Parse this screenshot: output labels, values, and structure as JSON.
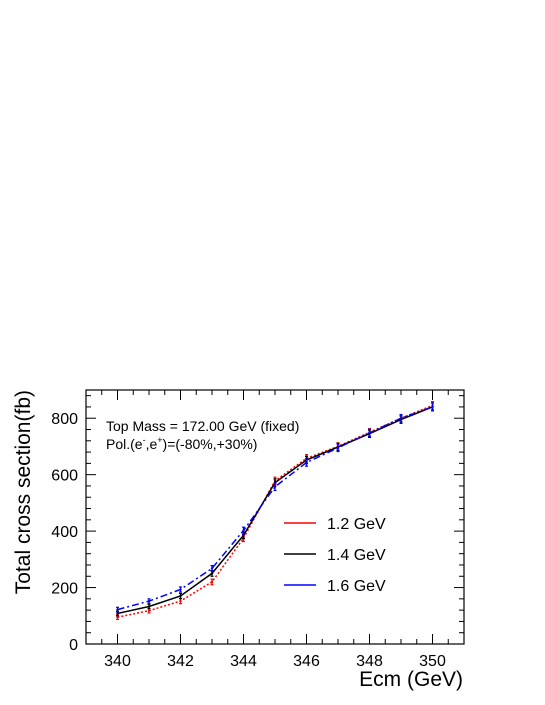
{
  "chart_data": {
    "type": "line",
    "xlabel": "Ecm (GeV)",
    "ylabel": "Total cross section(fb)",
    "xlim": [
      339,
      351
    ],
    "ylim": [
      0,
      900
    ],
    "x_ticks": [
      "340",
      "342",
      "344",
      "346",
      "348",
      "350"
    ],
    "y_ticks": [
      "0",
      "200",
      "400",
      "600",
      "800"
    ],
    "annotations": {
      "line1": "Top Mass = 172.00 GeV (fixed)",
      "line2_a": "Pol.(e",
      "line2_sup1": "-",
      "line2_b": ",e",
      "line2_sup2": "+",
      "line2_c": ")=(-80%,+30%)"
    },
    "x": [
      340,
      341,
      342,
      343,
      344,
      345,
      346,
      347,
      348,
      349,
      350
    ],
    "series": [
      {
        "name": "1.2 GeV",
        "color": "#ff0000",
        "style": "dotted",
        "values": [
          95,
          118,
          152,
          220,
          375,
          578,
          658,
          700,
          750,
          800,
          845
        ],
        "errors": [
          8,
          8,
          9,
          10,
          12,
          13,
          13,
          13,
          13,
          13,
          14
        ]
      },
      {
        "name": "1.4 GeV",
        "color": "#000000",
        "style": "solid",
        "values": [
          108,
          133,
          170,
          250,
          385,
          572,
          652,
          698,
          745,
          795,
          840
        ],
        "errors": [
          8,
          8,
          9,
          10,
          12,
          13,
          13,
          13,
          13,
          13,
          14
        ]
      },
      {
        "name": "1.6 GeV",
        "color": "#0000ff",
        "style": "dashdot",
        "values": [
          122,
          152,
          193,
          268,
          402,
          557,
          643,
          695,
          748,
          800,
          840
        ],
        "errors": [
          8,
          8,
          9,
          10,
          12,
          13,
          13,
          13,
          13,
          13,
          14
        ]
      }
    ],
    "legend": {
      "placement": "bottom-right",
      "entries": [
        "1.2 GeV",
        "1.4 GeV",
        "1.6 GeV"
      ]
    }
  }
}
